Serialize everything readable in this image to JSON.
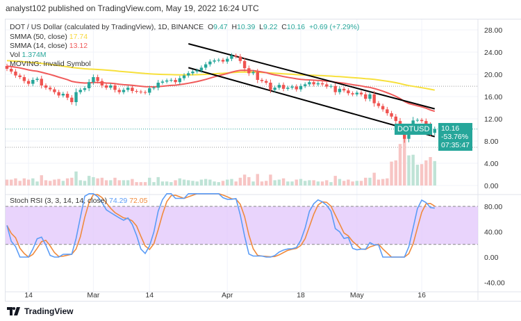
{
  "header": {
    "publisher": "analyst102 published on TradingView.com, May 19, 2022 16:24 UTC"
  },
  "legend": {
    "symbol": "DOT / US Dollar (calculated by TradingView), 1D, BINANCE",
    "open_label": "O",
    "open": "9.47",
    "high_label": "H",
    "high": "10.39",
    "low_label": "L",
    "low": "9.22",
    "close_label": "C",
    "close": "10.16",
    "change": "+0.69 (+7.29%)",
    "smma50_label": "SMMA (50, close)",
    "smma50": "17.74",
    "smma14_label": "SMMA (14, close)",
    "smma14": "13.12",
    "vol_label": "Vol",
    "vol": "1.374M",
    "moving": "MOVING: Invalid Symbol"
  },
  "price_tag": {
    "symbol": "DOTUSD",
    "price": "10.16",
    "change": "-53.76%",
    "countdown": "07:35:47"
  },
  "stoch": {
    "label": "Stoch RSI (3, 3, 14, 14, close)",
    "k": "74.29",
    "d": "72.05"
  },
  "footer": {
    "brand": "TradingView"
  },
  "colors": {
    "up": "#26a69a",
    "down": "#ef5350",
    "smma50": "#f7e03c",
    "smma14": "#f05a5a",
    "k": "#5b9cf6",
    "d": "#f08a3c",
    "band": "#e1c6fb"
  },
  "chart_data": {
    "type": "candlestick",
    "start_date": "2022-02-09",
    "end_date": "2022-05-19",
    "closes": [
      21,
      20.5,
      19.8,
      19.5,
      18.8,
      18.3,
      19,
      19.2,
      18,
      17.6,
      17.3,
      16.8,
      16.2,
      16.5,
      15.8,
      15,
      16.8,
      17.2,
      17.5,
      18.6,
      19.5,
      18.8,
      18,
      17.6,
      18,
      17.2,
      16.8,
      17.2,
      17.6,
      17,
      16.9,
      16.8,
      16.7,
      17.5,
      17.6,
      18.5,
      18.7,
      18.9,
      19,
      18.6,
      19.3,
      19.8,
      20.2,
      20.5,
      20.7,
      21.2,
      21.8,
      22.3,
      22.5,
      22.6,
      22.3,
      22.8,
      23.4,
      23.2,
      22.4,
      21.1,
      20.2,
      20.4,
      19,
      18.8,
      18.5,
      17.2,
      17.6,
      18.1,
      17.4,
      17.6,
      17.8,
      17.3,
      17.9,
      18.2,
      18.6,
      18.2,
      18.4,
      18.2,
      17.8,
      17.9,
      16.8,
      17.4,
      17.1,
      16.6,
      16.4,
      16.7,
      16.4,
      15.6,
      16.4,
      14.8,
      14.3,
      13.7,
      13,
      12.4,
      11.6,
      10.4,
      8.4,
      10,
      11.7,
      11.8,
      11.6,
      10.8,
      9.47,
      10.16
    ],
    "price_axis": {
      "ticks": [
        "28.00",
        "24.00",
        "20.00",
        "16.00",
        "12.00",
        "8.00",
        "4.00",
        "0.00"
      ],
      "values": [
        28,
        24,
        20,
        16,
        12,
        8,
        4,
        0
      ]
    },
    "stoch_axis": {
      "ticks": [
        "80.00",
        "40.00",
        "0.00",
        "-40.00"
      ],
      "values": [
        80,
        40,
        0,
        -40
      ]
    },
    "time_axis": [
      {
        "label": "14",
        "day": 5
      },
      {
        "label": "Mar",
        "day": 20
      },
      {
        "label": "14",
        "day": 33
      },
      {
        "label": "Apr",
        "day": 51
      },
      {
        "label": "18",
        "day": 68
      },
      {
        "label": "May",
        "day": 81
      },
      {
        "label": "16",
        "day": 96
      }
    ],
    "channel": {
      "upper": [
        {
          "day": 42,
          "price": 25.5
        },
        {
          "day": 99,
          "price": 13.8
        }
      ],
      "lower": [
        {
          "day": 42,
          "price": 21.2
        },
        {
          "day": 99,
          "price": 8.8
        }
      ]
    }
  }
}
